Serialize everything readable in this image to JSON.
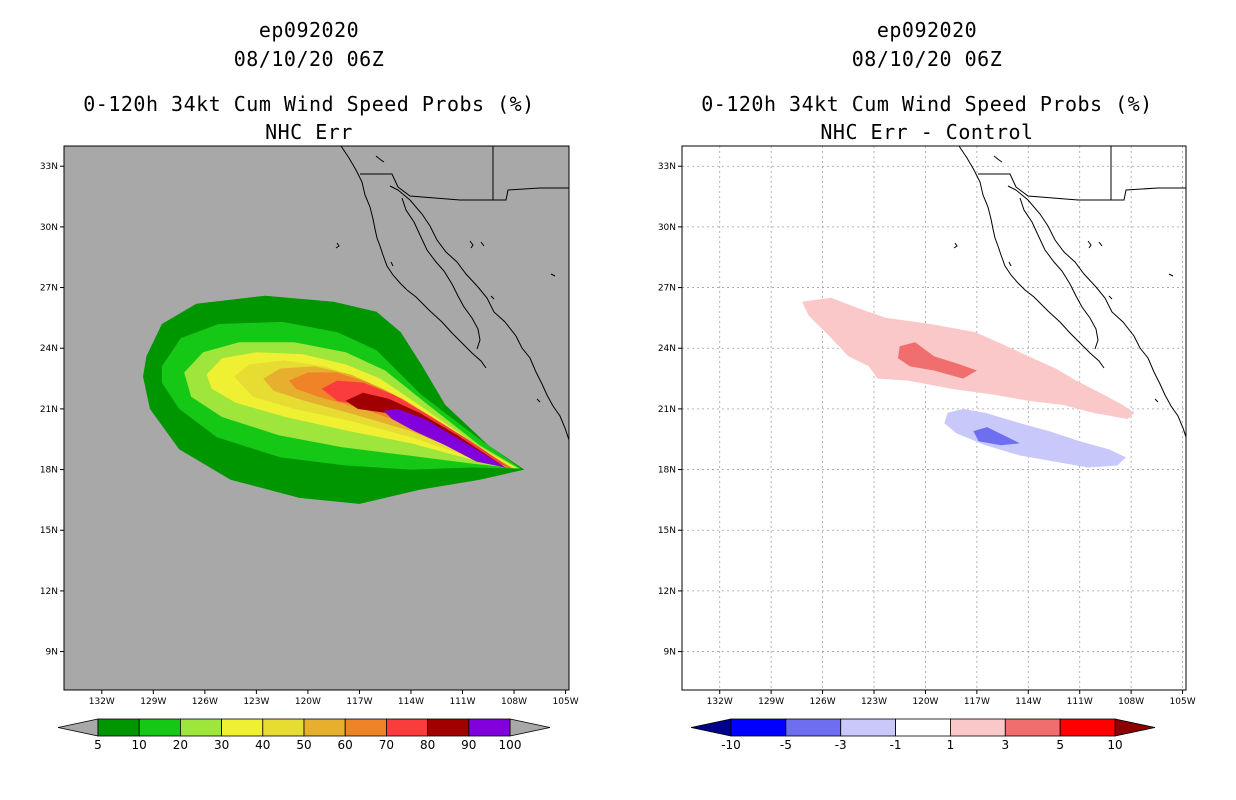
{
  "panels": [
    {
      "id": "left",
      "storm_id": "ep092020",
      "datetime": "08/10/20 06Z",
      "title": "0-120h 34kt Cum Wind Speed Probs (%)",
      "subtitle": "NHC Err",
      "background_color": "#a8a8a8"
    },
    {
      "id": "right",
      "storm_id": "ep092020",
      "datetime": "08/10/20 06Z",
      "title": "0-120h 34kt Cum Wind Speed Probs (%)",
      "subtitle": "NHC Err - Control",
      "background_color": "#ffffff"
    }
  ],
  "chart_data": [
    {
      "type": "heatmap",
      "title": "0-120h 34kt Cum Wind Speed Probs (%)",
      "subtitle": "NHC Err",
      "x_ticks": [
        "132W",
        "129W",
        "126W",
        "123W",
        "120W",
        "117W",
        "114W",
        "111W",
        "108W",
        "105W"
      ],
      "y_ticks": [
        "33N",
        "30N",
        "27N",
        "24N",
        "21N",
        "18N",
        "15N",
        "12N",
        "9N"
      ],
      "xlim_deg_east": [
        -134.2,
        -104.8
      ],
      "ylim_deg_north": [
        7.1,
        34.0
      ],
      "colorbar": {
        "labels": [
          "5",
          "10",
          "20",
          "30",
          "40",
          "50",
          "60",
          "70",
          "80",
          "90",
          "100"
        ],
        "colors": [
          "#009600",
          "#16c816",
          "#9ee63c",
          "#f0f032",
          "#e6dc32",
          "#e6af2d",
          "#f08228",
          "#fa3c3c",
          "#a00000",
          "#8200dc"
        ],
        "under_color": "#a8a8a8",
        "over_color": "#a8a8a8"
      },
      "levels": [
        {
          "min": 5,
          "color": "#009600",
          "outline": [
            [
              -129.4,
              23.6
            ],
            [
              -128.5,
              25.2
            ],
            [
              -126.5,
              26.2
            ],
            [
              -122.5,
              26.6
            ],
            [
              -118.5,
              26.3
            ],
            [
              -116,
              25.8
            ],
            [
              -114.6,
              24.8
            ],
            [
              -113.4,
              23.2
            ],
            [
              -112,
              21.2
            ],
            [
              -109.5,
              19.2
            ],
            [
              -107.4,
              18.0
            ],
            [
              -110,
              17.5
            ],
            [
              -113.5,
              17.0
            ],
            [
              -117,
              16.3
            ],
            [
              -120.5,
              16.6
            ],
            [
              -124.5,
              17.5
            ],
            [
              -127.5,
              19
            ],
            [
              -129.2,
              21
            ],
            [
              -129.6,
              22.6
            ]
          ]
        },
        {
          "min": 10,
          "color": "#16c816",
          "outline": [
            [
              -128.5,
              23.1
            ],
            [
              -127.4,
              24.5
            ],
            [
              -125.2,
              25.2
            ],
            [
              -121.5,
              25.3
            ],
            [
              -118.3,
              24.8
            ],
            [
              -116,
              23.9
            ],
            [
              -113.4,
              21.7
            ],
            [
              -110,
              19.5
            ],
            [
              -107.6,
              18.05
            ],
            [
              -110.5,
              18.1
            ],
            [
              -114,
              18.0
            ],
            [
              -117.8,
              18.2
            ],
            [
              -121.6,
              18.6
            ],
            [
              -125.3,
              19.6
            ],
            [
              -127.5,
              21
            ],
            [
              -128.5,
              22.3
            ]
          ]
        },
        {
          "min": 20,
          "color": "#9ee63c",
          "outline": [
            [
              -127.2,
              22.8
            ],
            [
              -126.1,
              23.8
            ],
            [
              -124,
              24.3
            ],
            [
              -120.8,
              24.3
            ],
            [
              -117.8,
              23.8
            ],
            [
              -115.5,
              22.9
            ],
            [
              -113,
              21.2
            ],
            [
              -110,
              19.2
            ],
            [
              -107.7,
              18.05
            ],
            [
              -110.5,
              18.3
            ],
            [
              -114.2,
              18.7
            ],
            [
              -118,
              19.1
            ],
            [
              -121.7,
              19.7
            ],
            [
              -125,
              20.6
            ],
            [
              -126.8,
              21.6
            ]
          ]
        },
        {
          "min": 30,
          "color": "#f0f032",
          "outline": [
            [
              -125.9,
              22.7
            ],
            [
              -125,
              23.5
            ],
            [
              -123,
              23.8
            ],
            [
              -120.3,
              23.7
            ],
            [
              -117.8,
              23.2
            ],
            [
              -115.8,
              22.5
            ],
            [
              -113.2,
              21
            ],
            [
              -110,
              19.1
            ],
            [
              -107.8,
              18.05
            ],
            [
              -110.5,
              18.5
            ],
            [
              -114,
              19.3
            ],
            [
              -117.6,
              19.9
            ],
            [
              -121.3,
              20.6
            ],
            [
              -124.2,
              21.3
            ],
            [
              -125.6,
              22.0
            ]
          ]
        },
        {
          "min": 40,
          "color": "#e6dc32",
          "outline": [
            [
              -124.3,
              22.6
            ],
            [
              -123.4,
              23.2
            ],
            [
              -121.4,
              23.4
            ],
            [
              -119,
              23.1
            ],
            [
              -117,
              22.5
            ],
            [
              -114.8,
              21.6
            ],
            [
              -112.3,
              20.2
            ],
            [
              -109.5,
              18.7
            ],
            [
              -107.9,
              18.05
            ],
            [
              -110.5,
              18.6
            ],
            [
              -114,
              19.6
            ],
            [
              -117.5,
              20.4
            ],
            [
              -120.8,
              21.0
            ],
            [
              -123.2,
              21.6
            ]
          ]
        },
        {
          "min": 50,
          "color": "#e6af2d",
          "outline": [
            [
              -122.6,
              22.5
            ],
            [
              -121.6,
              23.0
            ],
            [
              -119.6,
              23.1
            ],
            [
              -117.5,
              22.7
            ],
            [
              -115.4,
              21.9
            ],
            [
              -113,
              20.7
            ],
            [
              -110.5,
              19.3
            ],
            [
              -108,
              18.05
            ],
            [
              -110.8,
              18.8
            ],
            [
              -114,
              19.9
            ],
            [
              -117.2,
              20.7
            ],
            [
              -120.2,
              21.4
            ],
            [
              -122,
              21.9
            ]
          ]
        },
        {
          "min": 60,
          "color": "#f08228",
          "outline": [
            [
              -121.1,
              22.4
            ],
            [
              -120,
              22.8
            ],
            [
              -118.3,
              22.8
            ],
            [
              -116.5,
              22.3
            ],
            [
              -114.5,
              21.5
            ],
            [
              -112.2,
              20.3
            ],
            [
              -110,
              19.1
            ],
            [
              -108.1,
              18.05
            ],
            [
              -110.8,
              18.9
            ],
            [
              -113.8,
              20.1
            ],
            [
              -116.8,
              21.0
            ],
            [
              -119.4,
              21.6
            ],
            [
              -120.7,
              22.0
            ]
          ]
        },
        {
          "min": 70,
          "color": "#fa3c3c",
          "outline": [
            [
              -119.2,
              22.0
            ],
            [
              -118.3,
              22.4
            ],
            [
              -116.8,
              22.3
            ],
            [
              -115,
              21.7
            ],
            [
              -113,
              20.7
            ],
            [
              -110.7,
              19.5
            ],
            [
              -108.2,
              18.05
            ],
            [
              -111,
              19.1
            ],
            [
              -113.8,
              20.3
            ],
            [
              -116.4,
              21.1
            ],
            [
              -118.3,
              21.4
            ]
          ]
        },
        {
          "min": 80,
          "color": "#a00000",
          "outline": [
            [
              -117.8,
              21.4
            ],
            [
              -116.8,
              21.8
            ],
            [
              -115.3,
              21.5
            ],
            [
              -113.5,
              20.8
            ],
            [
              -111.3,
              19.7
            ],
            [
              -108.4,
              18.05
            ],
            [
              -111,
              19.2
            ],
            [
              -113.3,
              20.2
            ],
            [
              -115.5,
              20.8
            ],
            [
              -117.1,
              21.0
            ]
          ]
        },
        {
          "min": 90,
          "color": "#8200dc",
          "outline": [
            [
              -115.6,
              20.9
            ],
            [
              -114.8,
              21.0
            ],
            [
              -113.2,
              20.5
            ],
            [
              -111.4,
              19.6
            ],
            [
              -109.8,
              18.8
            ],
            [
              -108.5,
              18.1
            ],
            [
              -110.2,
              18.4
            ],
            [
              -112,
              19.2
            ],
            [
              -113.8,
              19.9
            ],
            [
              -115.1,
              20.5
            ]
          ]
        }
      ]
    },
    {
      "type": "heatmap",
      "title": "0-120h 34kt Cum Wind Speed Probs (%)",
      "subtitle": "NHC Err - Control",
      "x_ticks": [
        "132W",
        "129W",
        "126W",
        "123W",
        "120W",
        "117W",
        "114W",
        "111W",
        "108W",
        "105W"
      ],
      "y_ticks": [
        "33N",
        "30N",
        "27N",
        "24N",
        "21N",
        "18N",
        "15N",
        "12N",
        "9N"
      ],
      "xlim_deg_east": [
        -134.2,
        -104.8
      ],
      "ylim_deg_north": [
        7.1,
        34.0
      ],
      "grid": true,
      "colorbar": {
        "labels": [
          "-10",
          "-5",
          "-3",
          "-1",
          "1",
          "3",
          "5",
          "10"
        ],
        "colors": [
          "#0000ff",
          "#6e6ef0",
          "#c8c8fa",
          "#ffffff",
          "#fac8c8",
          "#f06e6e",
          "#ff0000"
        ],
        "under_color": "#00008c",
        "over_color": "#8c0000"
      },
      "levels": [
        {
          "min": 1,
          "color": "#fac8c8",
          "outline": [
            [
              -127.2,
              26.3
            ],
            [
              -125.5,
              26.5
            ],
            [
              -124,
              26.0
            ],
            [
              -122.3,
              25.5
            ],
            [
              -119.7,
              25.2
            ],
            [
              -117.1,
              24.8
            ],
            [
              -115.5,
              24.2
            ],
            [
              -114,
              23.6
            ],
            [
              -112.4,
              23.0
            ],
            [
              -111.2,
              22.4
            ],
            [
              -109.6,
              21.7
            ],
            [
              -108.5,
              21.2
            ],
            [
              -107.8,
              20.8
            ],
            [
              -108.2,
              20.5
            ],
            [
              -110.2,
              20.8
            ],
            [
              -112,
              21.2
            ],
            [
              -114,
              21.4
            ],
            [
              -116,
              21.7
            ],
            [
              -118.5,
              22.0
            ],
            [
              -121,
              22.4
            ],
            [
              -122.8,
              22.5
            ],
            [
              -123.3,
              23.1
            ],
            [
              -124.5,
              23.6
            ],
            [
              -125.6,
              24.6
            ],
            [
              -126.8,
              25.6
            ]
          ]
        },
        {
          "min": -1,
          "color": "#c8c8fa",
          "outline": [
            [
              -118.7,
              20.8
            ],
            [
              -117.8,
              21.0
            ],
            [
              -116.5,
              20.8
            ],
            [
              -114.5,
              20.3
            ],
            [
              -112.8,
              19.9
            ],
            [
              -111,
              19.4
            ],
            [
              -109.3,
              19.0
            ],
            [
              -108.3,
              18.6
            ],
            [
              -108.8,
              18.2
            ],
            [
              -110.5,
              18.1
            ],
            [
              -112.5,
              18.4
            ],
            [
              -114.5,
              18.7
            ],
            [
              -116.5,
              19.2
            ],
            [
              -118.2,
              19.8
            ],
            [
              -118.9,
              20.3
            ]
          ]
        },
        {
          "min": 3,
          "color": "#f06e6e",
          "outline": [
            [
              -121.5,
              24.1
            ],
            [
              -120.6,
              24.3
            ],
            [
              -119.5,
              23.6
            ],
            [
              -118,
              23.2
            ],
            [
              -117.0,
              22.9
            ],
            [
              -117.8,
              22.5
            ],
            [
              -119.5,
              22.9
            ],
            [
              -120.9,
              23.1
            ],
            [
              -121.6,
              23.5
            ]
          ]
        },
        {
          "min": -3,
          "color": "#6e6ef0",
          "outline": [
            [
              -117.2,
              19.9
            ],
            [
              -116.4,
              20.1
            ],
            [
              -115.2,
              19.6
            ],
            [
              -114.5,
              19.3
            ],
            [
              -115.6,
              19.2
            ],
            [
              -116.9,
              19.4
            ]
          ]
        }
      ]
    }
  ]
}
